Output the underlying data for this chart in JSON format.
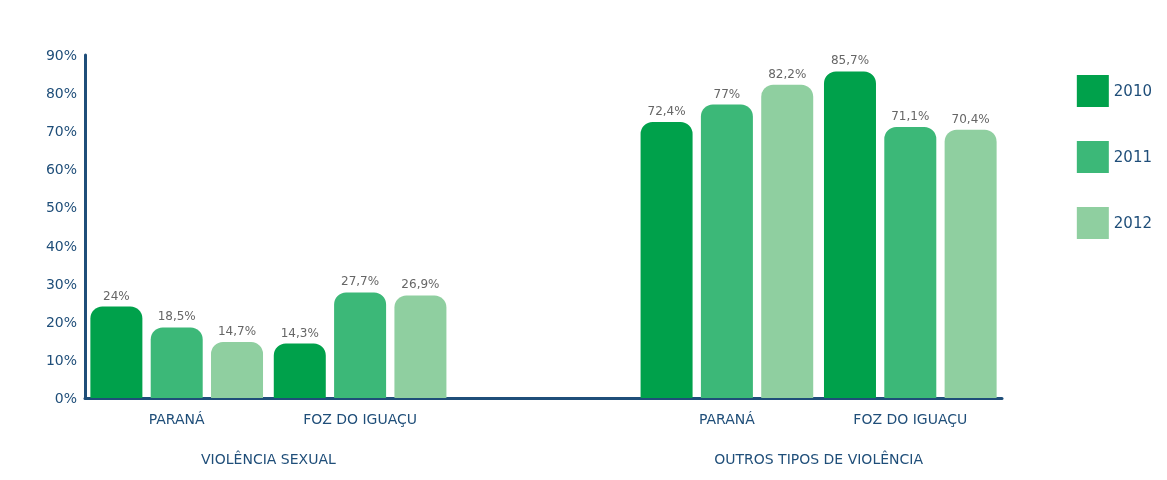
{
  "chart_data": {
    "type": "bar",
    "categories": [
      "PARANÁ",
      "FOZ DO IGUAÇU",
      null,
      "PARANÁ",
      "FOZ DO IGUAÇU"
    ],
    "series": [
      {
        "name": "2010",
        "color": "#00a14b",
        "values": [
          24,
          14.3,
          null,
          72.4,
          85.7
        ],
        "value_labels": [
          "24%",
          "14,3%",
          null,
          "72,4%",
          "85,7%"
        ]
      },
      {
        "name": "2011",
        "color": "#3cb878",
        "values": [
          18.5,
          27.7,
          null,
          77,
          71.1
        ],
        "value_labels": [
          "18,5%",
          "27,7%",
          null,
          "77%",
          "71,1%"
        ]
      },
      {
        "name": "2012",
        "color": "#8fcfa0",
        "values": [
          14.7,
          26.9,
          null,
          82.2,
          70.4
        ],
        "value_labels": [
          "14,7%",
          "26,9%",
          null,
          "82,2%",
          "70,4%"
        ]
      }
    ],
    "ylim": [
      0,
      90
    ],
    "yticks": [
      {
        "value": 0,
        "label": "0%"
      },
      {
        "value": 10,
        "label": "10%"
      },
      {
        "value": 20,
        "label": "20%"
      },
      {
        "value": 30,
        "label": "30%"
      },
      {
        "value": 40,
        "label": "40%"
      },
      {
        "value": 50,
        "label": "50%"
      },
      {
        "value": 60,
        "label": "60%"
      },
      {
        "value": 70,
        "label": "70%"
      },
      {
        "value": 80,
        "label": "80%"
      },
      {
        "value": 90,
        "label": "90%"
      }
    ],
    "annotations": [
      "VIOLÊNCIA SEXUAL",
      "OUTROS TIPOS DE VIOLÊNCIA"
    ],
    "grid": false,
    "legend": "right"
  }
}
